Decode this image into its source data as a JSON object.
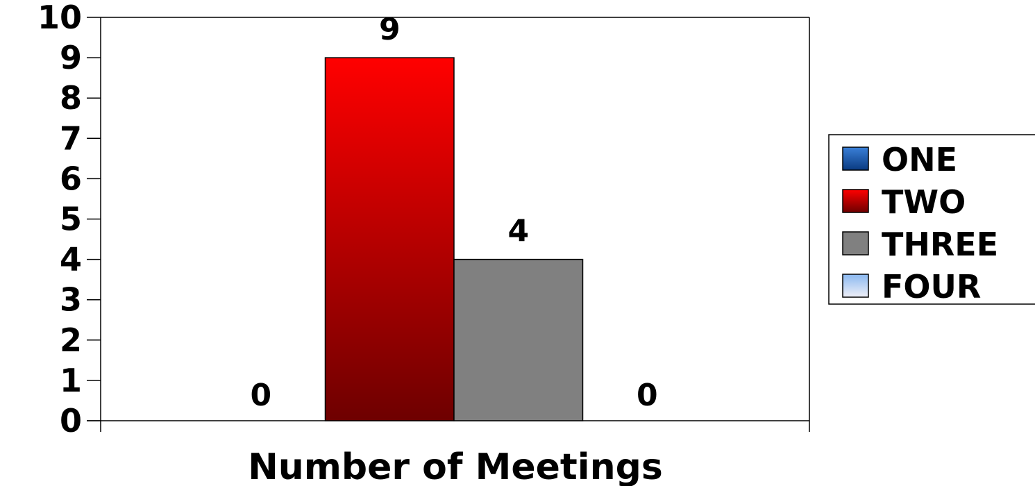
{
  "chart_data": {
    "type": "bar",
    "title": "",
    "xlabel": "Number of Meetings",
    "ylabel": "",
    "ylim": [
      0,
      10
    ],
    "yticks": [
      0,
      1,
      2,
      3,
      4,
      5,
      6,
      7,
      8,
      9,
      10
    ],
    "categories": [
      ""
    ],
    "series": [
      {
        "name": "ONE",
        "values": [
          0
        ],
        "data_label": "0",
        "color": "#1f5fae"
      },
      {
        "name": "TWO",
        "values": [
          9
        ],
        "data_label": "9",
        "color": "#e00000"
      },
      {
        "name": "THREE",
        "values": [
          4
        ],
        "data_label": "4",
        "color": "#808080"
      },
      {
        "name": "FOUR",
        "values": [
          0
        ],
        "data_label": "0",
        "color": "#aac8f0"
      }
    ],
    "grid": false,
    "legend_position": "right"
  }
}
